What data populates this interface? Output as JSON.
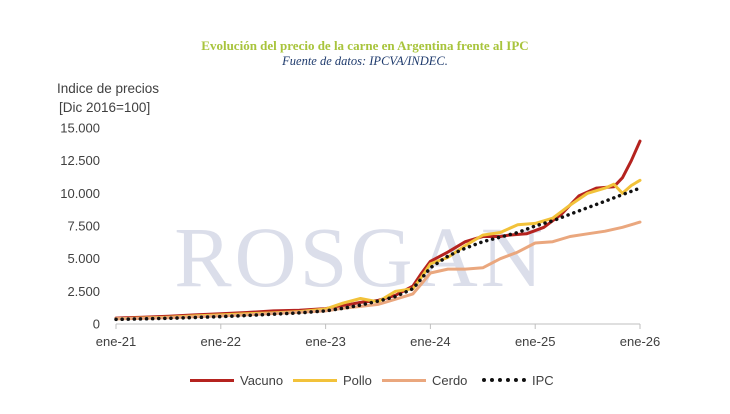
{
  "chart_data": {
    "type": "line",
    "title": "Evolución del precio de la carne en Argentina frente al IPC",
    "subtitle": "Fuente de datos: IPCVA/INDEC.",
    "ylabel_lines": [
      "Indice de precios",
      "[Dic 2016=100]"
    ],
    "watermark": "ROSGAN",
    "xlim": [
      0,
      60
    ],
    "ylim": [
      0,
      15000
    ],
    "y_ticks": [
      0,
      2500,
      5000,
      7500,
      10000,
      12500,
      15000
    ],
    "y_tick_labels": [
      "0",
      "2.500",
      "5.000",
      "7.500",
      "10.000",
      "12.500",
      "15.000"
    ],
    "x_ticks": [
      0,
      12,
      24,
      36,
      48,
      60
    ],
    "x_tick_labels": [
      "ene-21",
      "ene-22",
      "ene-23",
      "ene-24",
      "ene-25",
      "ene-26"
    ],
    "legend_position": "bottom",
    "series": [
      {
        "name": "Vacuno",
        "color": "#b5231f",
        "style": "solid",
        "x": [
          0,
          3,
          6,
          9,
          12,
          15,
          18,
          21,
          24,
          26,
          28,
          30,
          32,
          34,
          35,
          36,
          38,
          40,
          42,
          44,
          45,
          47,
          49,
          51,
          53,
          55,
          57,
          58,
          59,
          60
        ],
        "values": [
          450,
          520,
          600,
          700,
          780,
          880,
          1000,
          1050,
          1180,
          1400,
          1650,
          1800,
          2200,
          2900,
          3900,
          4800,
          5500,
          6300,
          6700,
          6700,
          6800,
          6900,
          7400,
          8400,
          9800,
          10400,
          10500,
          11200,
          12500,
          14000
        ]
      },
      {
        "name": "Pollo",
        "color": "#f2c23a",
        "style": "solid",
        "x": [
          0,
          3,
          6,
          9,
          12,
          15,
          18,
          21,
          24,
          26,
          28,
          30,
          32,
          34,
          35,
          36,
          38,
          40,
          42,
          44,
          46,
          48,
          50,
          52,
          54,
          56,
          57,
          58,
          59,
          60
        ],
        "values": [
          400,
          460,
          520,
          620,
          700,
          780,
          850,
          950,
          1150,
          1600,
          1950,
          1700,
          2500,
          2700,
          3600,
          4600,
          5100,
          6000,
          6800,
          7000,
          7600,
          7700,
          8100,
          9100,
          10000,
          10400,
          10700,
          10000,
          10600,
          11000
        ]
      },
      {
        "name": "Cerdo",
        "color": "#eaa77e",
        "style": "solid",
        "x": [
          0,
          3,
          6,
          9,
          12,
          15,
          18,
          21,
          24,
          26,
          28,
          30,
          32,
          34,
          35,
          36,
          38,
          40,
          42,
          44,
          46,
          48,
          50,
          52,
          54,
          56,
          58,
          60
        ],
        "values": [
          400,
          430,
          480,
          560,
          620,
          700,
          800,
          900,
          1000,
          1200,
          1350,
          1500,
          1900,
          2300,
          3100,
          3900,
          4200,
          4200,
          4300,
          5000,
          5500,
          6200,
          6300,
          6700,
          6900,
          7100,
          7400,
          7800
        ]
      },
      {
        "name": "IPC",
        "color": "#111111",
        "style": "dotted",
        "x": [
          0,
          3,
          6,
          9,
          12,
          15,
          18,
          21,
          24,
          26,
          28,
          30,
          32,
          34,
          35,
          36,
          38,
          40,
          42,
          44,
          46,
          48,
          50,
          52,
          54,
          56,
          58,
          60
        ],
        "values": [
          350,
          390,
          440,
          500,
          570,
          650,
          750,
          850,
          1000,
          1200,
          1450,
          1750,
          2100,
          2700,
          3500,
          4300,
          5200,
          5800,
          6300,
          6650,
          7000,
          7500,
          7900,
          8400,
          8900,
          9400,
          9900,
          10400
        ]
      }
    ]
  }
}
